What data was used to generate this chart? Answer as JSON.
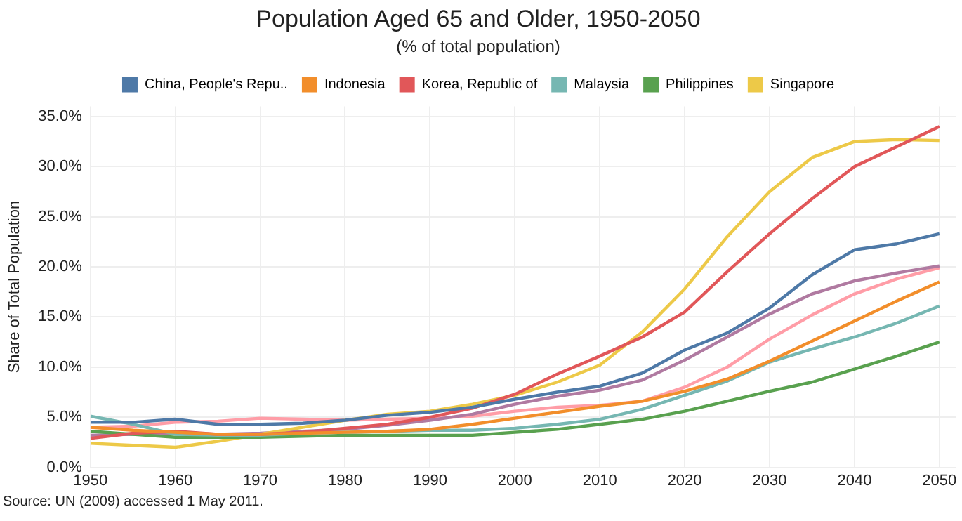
{
  "chart_data": {
    "type": "line",
    "title": "Population Aged 65 and Older, 1950-2050",
    "subtitle": "(% of total population)",
    "ylabel": "Share of Total Population",
    "x": [
      1950,
      1955,
      1960,
      1965,
      1970,
      1975,
      1980,
      1985,
      1990,
      1995,
      2000,
      2005,
      2010,
      2015,
      2020,
      2025,
      2030,
      2035,
      2040,
      2045,
      2050
    ],
    "series": [
      {
        "name": "China, People's Repu..",
        "color": "#4e79a7",
        "values": [
          4.5,
          4.5,
          4.8,
          4.3,
          4.3,
          4.4,
          4.7,
          5.2,
          5.5,
          6.0,
          6.8,
          7.5,
          8.1,
          9.4,
          11.7,
          13.4,
          15.9,
          19.2,
          21.7,
          22.3,
          23.3
        ]
      },
      {
        "name": "Indonesia",
        "color": "#f28e2b",
        "values": [
          4.0,
          3.7,
          3.5,
          3.3,
          3.3,
          3.4,
          3.5,
          3.6,
          3.8,
          4.3,
          4.9,
          5.5,
          6.1,
          6.6,
          7.6,
          8.8,
          10.6,
          12.6,
          14.6,
          16.6,
          18.5
        ]
      },
      {
        "name": "Korea, Republic of",
        "color": "#e15759",
        "values": [
          2.9,
          3.4,
          3.6,
          3.3,
          3.3,
          3.5,
          3.9,
          4.3,
          5.0,
          5.9,
          7.3,
          9.3,
          11.1,
          13.0,
          15.5,
          19.5,
          23.3,
          26.8,
          30.0,
          32.0,
          34.0
        ]
      },
      {
        "name": "Malaysia",
        "color": "#76b7b2",
        "values": [
          5.1,
          4.3,
          3.3,
          3.2,
          3.2,
          3.4,
          3.5,
          3.6,
          3.7,
          3.7,
          3.9,
          4.3,
          4.8,
          5.8,
          7.2,
          8.6,
          10.5,
          11.8,
          13.0,
          14.4,
          16.1
        ]
      },
      {
        "name": "Philippines",
        "color": "#59a14f",
        "values": [
          3.6,
          3.3,
          3.0,
          3.0,
          3.0,
          3.1,
          3.2,
          3.2,
          3.2,
          3.2,
          3.5,
          3.8,
          4.3,
          4.8,
          5.6,
          6.6,
          7.6,
          8.5,
          9.8,
          11.1,
          12.5
        ]
      },
      {
        "name": "Singapore",
        "color": "#edc948",
        "values": [
          2.4,
          2.2,
          2.0,
          2.6,
          3.3,
          4.0,
          4.7,
          5.3,
          5.6,
          6.3,
          7.2,
          8.5,
          10.2,
          13.5,
          17.8,
          23.0,
          27.5,
          30.9,
          32.5,
          32.7,
          32.6
        ]
      },
      {
        "color": "#b07aa1",
        "values": [
          3.2,
          3.3,
          3.4,
          3.3,
          3.4,
          3.6,
          3.8,
          4.2,
          4.7,
          5.3,
          6.3,
          7.1,
          7.7,
          8.7,
          10.7,
          13.0,
          15.3,
          17.3,
          18.6,
          19.4,
          20.1
        ]
      },
      {
        "color": "#ff9da7",
        "values": [
          4.0,
          4.1,
          4.5,
          4.6,
          4.9,
          4.8,
          4.7,
          4.8,
          4.9,
          5.1,
          5.6,
          6.0,
          6.2,
          6.6,
          8.0,
          10.0,
          12.8,
          15.2,
          17.3,
          18.8,
          19.9
        ]
      }
    ],
    "xlim": [
      1950,
      2052
    ],
    "xticks": [
      1950,
      1960,
      1970,
      1980,
      1990,
      2000,
      2010,
      2020,
      2030,
      2040,
      2050
    ],
    "ylim": [
      0,
      36
    ],
    "yticks": [
      {
        "value": 0,
        "label": "0.0%"
      },
      {
        "value": 5,
        "label": "5.0%"
      },
      {
        "value": 10,
        "label": "10.0%"
      },
      {
        "value": 15,
        "label": "15.0%"
      },
      {
        "value": 20,
        "label": "20.0%"
      },
      {
        "value": 25,
        "label": "25.0%"
      },
      {
        "value": 30,
        "label": "30.0%"
      },
      {
        "value": 35,
        "label": "35.0%"
      }
    ],
    "grid": true,
    "legend": "top",
    "marker": "none",
    "line_style": "solid",
    "annotations": [
      "Source: UN (2009) accessed 1 May 2011."
    ]
  }
}
